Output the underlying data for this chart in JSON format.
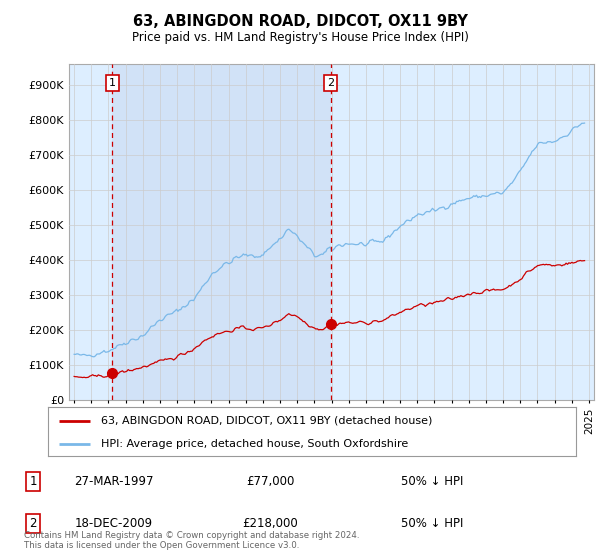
{
  "title": "63, ABINGDON ROAD, DIDCOT, OX11 9BY",
  "subtitle": "Price paid vs. HM Land Registry's House Price Index (HPI)",
  "hpi_color": "#7ab8e8",
  "property_color": "#cc0000",
  "marker_color": "#cc0000",
  "vline_color": "#cc0000",
  "background_color": "#ffffff",
  "plot_bg_color": "#ddeeff",
  "grid_color": "#cccccc",
  "shade_color": "#ccddf5",
  "ylabel_values": [
    "£0",
    "£100K",
    "£200K",
    "£300K",
    "£400K",
    "£500K",
    "£600K",
    "£700K",
    "£800K",
    "£900K"
  ],
  "ylabel_nums": [
    0,
    100000,
    200000,
    300000,
    400000,
    500000,
    600000,
    700000,
    800000,
    900000
  ],
  "ylim": [
    0,
    960000
  ],
  "xlim_start": 1994.7,
  "xlim_end": 2025.3,
  "purchase1_x": 1997.23,
  "purchase1_y": 77000,
  "purchase1_label": "1",
  "purchase2_x": 2009.96,
  "purchase2_y": 218000,
  "purchase2_label": "2",
  "legend_line1": "63, ABINGDON ROAD, DIDCOT, OX11 9BY (detached house)",
  "legend_line2": "HPI: Average price, detached house, South Oxfordshire",
  "table_row1_num": "1",
  "table_row1_date": "27-MAR-1997",
  "table_row1_price": "£77,000",
  "table_row1_hpi": "50% ↓ HPI",
  "table_row2_num": "2",
  "table_row2_date": "18-DEC-2009",
  "table_row2_price": "£218,000",
  "table_row2_hpi": "50% ↓ HPI",
  "footer": "Contains HM Land Registry data © Crown copyright and database right 2024.\nThis data is licensed under the Open Government Licence v3.0."
}
